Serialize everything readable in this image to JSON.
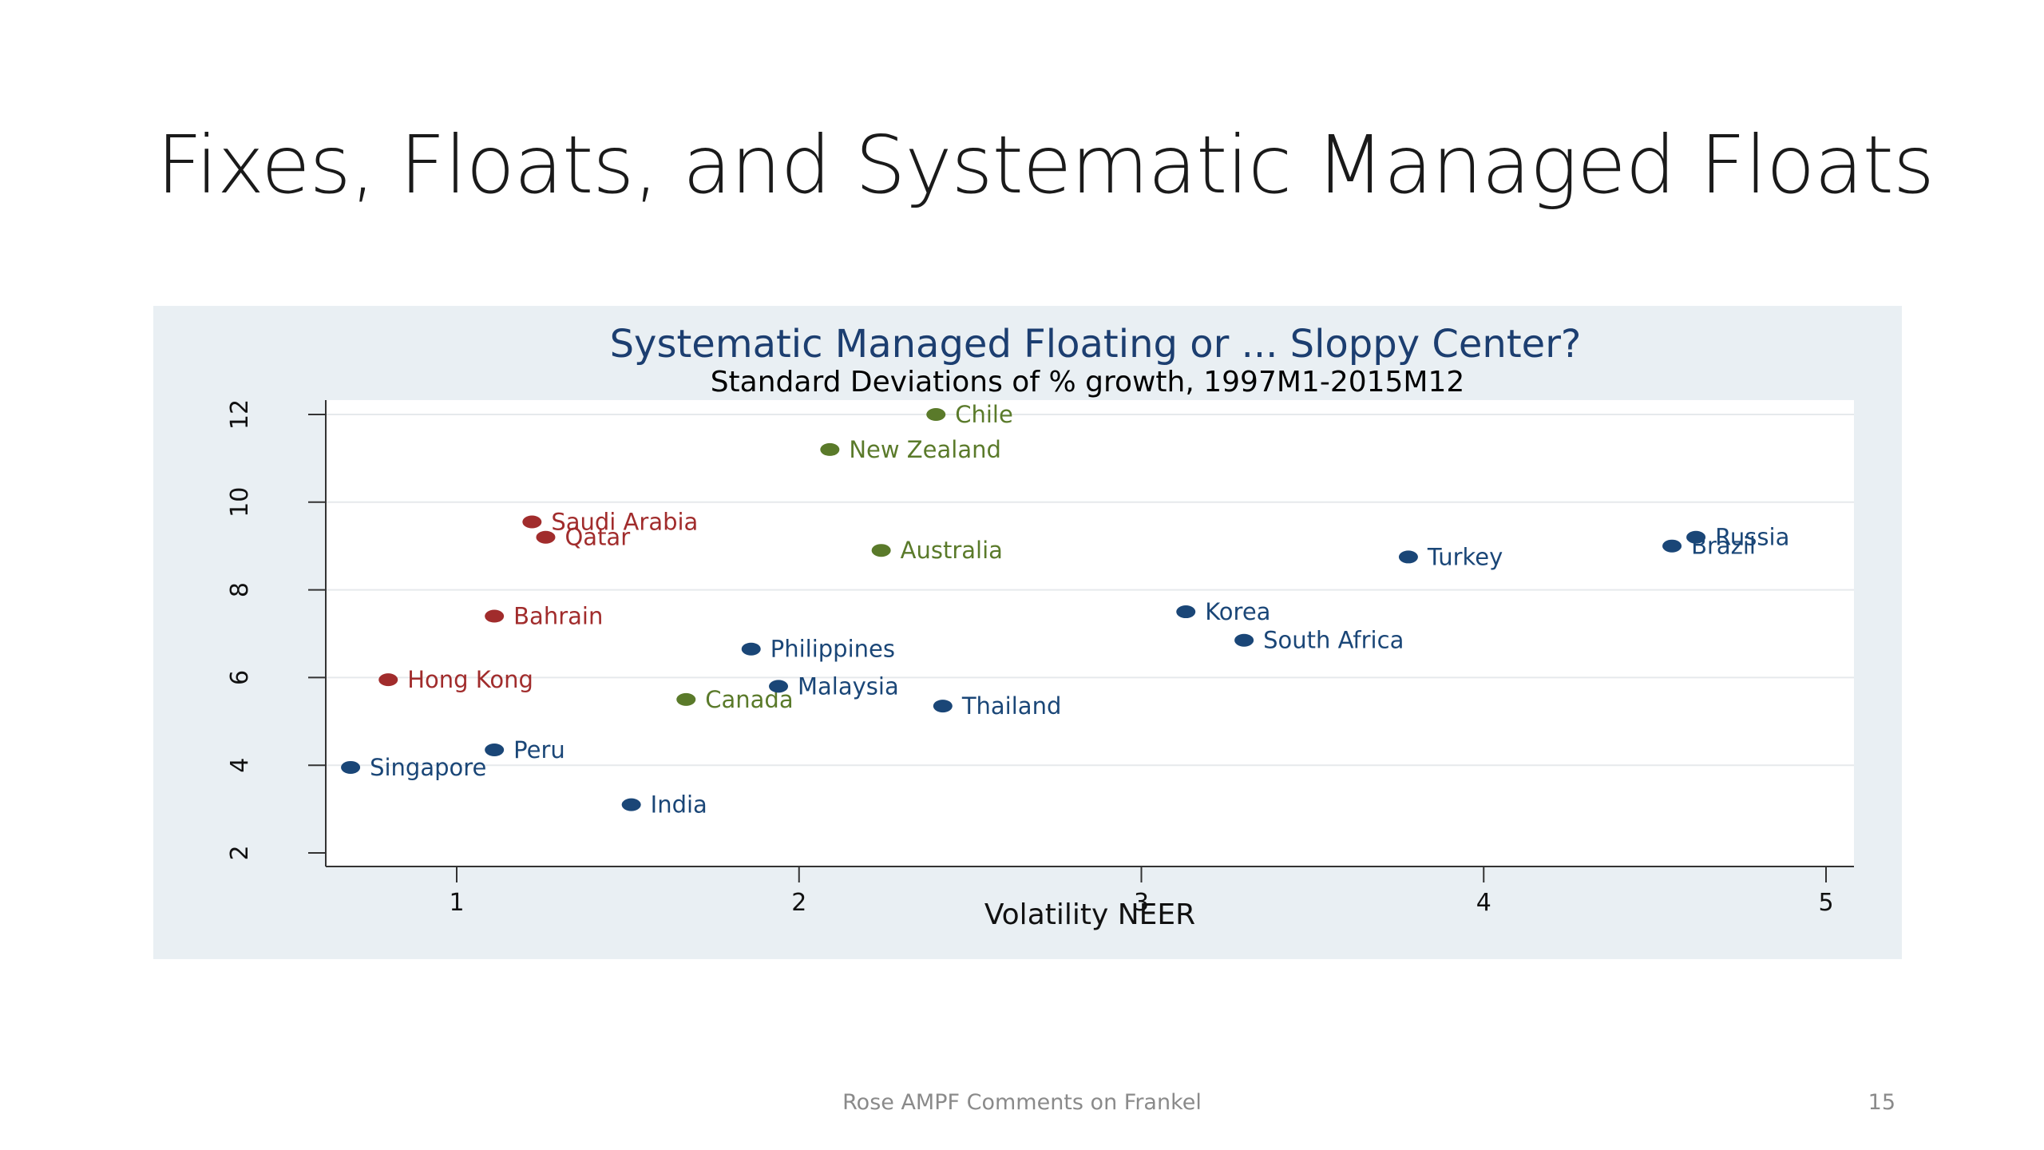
{
  "slide": {
    "title": "Fixes, Floats, and Systematic Managed Floats",
    "footer": "Rose AMPF Comments on Frankel",
    "page_number": "15"
  },
  "colors": {
    "panel_background": "#e9eff3",
    "plot_background": "#ffffff",
    "title_color": "#1c3e70",
    "group_blue": "#1a4677",
    "group_red": "#a12c2c",
    "group_green": "#5a7a2a"
  },
  "chart_data": {
    "type": "scatter",
    "title": "Systematic Managed Floating or ... Sloppy Center?",
    "subtitle": "Standard Deviations of % growth, 1997M1-2015M12",
    "xlabel": "Volatility NEER",
    "ylabel": "",
    "xlim": [
      0.6,
      5.1
    ],
    "ylim": [
      2,
      12
    ],
    "x_ticks": [
      1,
      2,
      3,
      4,
      5
    ],
    "y_ticks": [
      2,
      4,
      6,
      8,
      10,
      12
    ],
    "grid": "horizontal",
    "legend": "none",
    "points": [
      {
        "label": "Chile",
        "x": 2.4,
        "y": 12.0,
        "group": "green"
      },
      {
        "label": "New Zealand",
        "x": 2.09,
        "y": 11.2,
        "group": "green"
      },
      {
        "label": "Australia",
        "x": 2.24,
        "y": 8.9,
        "group": "green"
      },
      {
        "label": "Canada",
        "x": 1.67,
        "y": 5.5,
        "group": "green"
      },
      {
        "label": "Saudi Arabia",
        "x": 1.22,
        "y": 9.55,
        "group": "red"
      },
      {
        "label": "Qatar",
        "x": 1.26,
        "y": 9.2,
        "group": "red"
      },
      {
        "label": "Bahrain",
        "x": 1.11,
        "y": 7.4,
        "group": "red"
      },
      {
        "label": "Hong Kong",
        "x": 0.8,
        "y": 5.95,
        "group": "red"
      },
      {
        "label": "Russia",
        "x": 4.62,
        "y": 9.2,
        "group": "blue"
      },
      {
        "label": "Brazil",
        "x": 4.55,
        "y": 9.0,
        "group": "blue"
      },
      {
        "label": "Turkey",
        "x": 3.78,
        "y": 8.75,
        "group": "blue"
      },
      {
        "label": "Korea",
        "x": 3.13,
        "y": 7.5,
        "group": "blue"
      },
      {
        "label": "South Africa",
        "x": 3.3,
        "y": 6.85,
        "group": "blue"
      },
      {
        "label": "Philippines",
        "x": 1.86,
        "y": 6.65,
        "group": "blue"
      },
      {
        "label": "Malaysia",
        "x": 1.94,
        "y": 5.8,
        "group": "blue"
      },
      {
        "label": "Thailand",
        "x": 2.42,
        "y": 5.35,
        "group": "blue"
      },
      {
        "label": "Peru",
        "x": 1.11,
        "y": 4.35,
        "group": "blue"
      },
      {
        "label": "Singapore",
        "x": 0.69,
        "y": 3.95,
        "group": "blue"
      },
      {
        "label": "India",
        "x": 1.51,
        "y": 3.1,
        "group": "blue"
      }
    ]
  }
}
